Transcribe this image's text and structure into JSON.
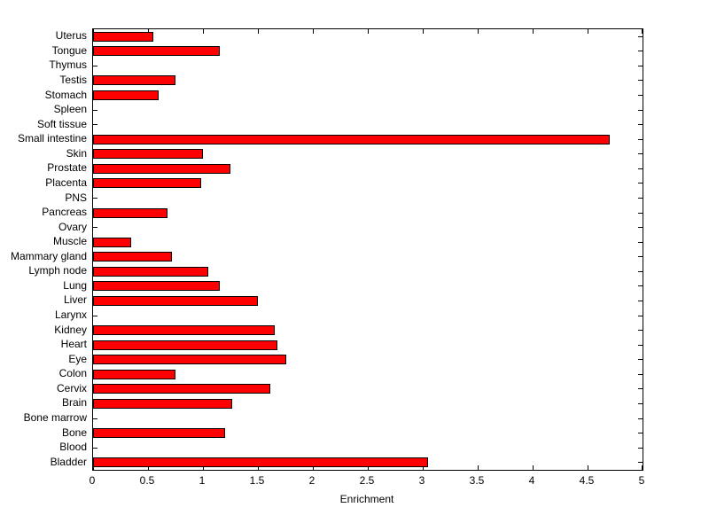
{
  "chart_data": {
    "type": "bar",
    "orientation": "horizontal",
    "title": "",
    "xlabel": "Enrichment",
    "ylabel": "",
    "xlim": [
      0,
      5
    ],
    "xticks": [
      0,
      0.5,
      1,
      1.5,
      2,
      2.5,
      3,
      3.5,
      4,
      4.5,
      5
    ],
    "xtick_labels": [
      "0",
      "0.5",
      "1",
      "1.5",
      "2",
      "2.5",
      "3",
      "3.5",
      "4",
      "4.5",
      "5"
    ],
    "grid": false,
    "legend": false,
    "bar_color": "#ff0000",
    "bar_edge_color": "#000000",
    "background_color": "#ffffff",
    "axis_color": "#000000",
    "categories": [
      "Uterus",
      "Tongue",
      "Thymus",
      "Testis",
      "Stomach",
      "Spleen",
      "Soft tissue",
      "Small intestine",
      "Skin",
      "Prostate",
      "Placenta",
      "PNS",
      "Pancreas",
      "Ovary",
      "Muscle",
      "Mammary gland",
      "Lymph node",
      "Lung",
      "Liver",
      "Larynx",
      "Kidney",
      "Heart",
      "Eye",
      "Colon",
      "Cervix",
      "Brain",
      "Bone marrow",
      "Bone",
      "Blood",
      "Bladder"
    ],
    "values": [
      0.55,
      1.15,
      0,
      0.75,
      0.6,
      0,
      0,
      4.7,
      1.0,
      1.25,
      0.98,
      0,
      0.68,
      0,
      0.35,
      0.72,
      1.05,
      1.15,
      1.5,
      0,
      1.65,
      1.68,
      1.76,
      0.75,
      1.61,
      1.27,
      0,
      1.2,
      0,
      3.05
    ]
  }
}
